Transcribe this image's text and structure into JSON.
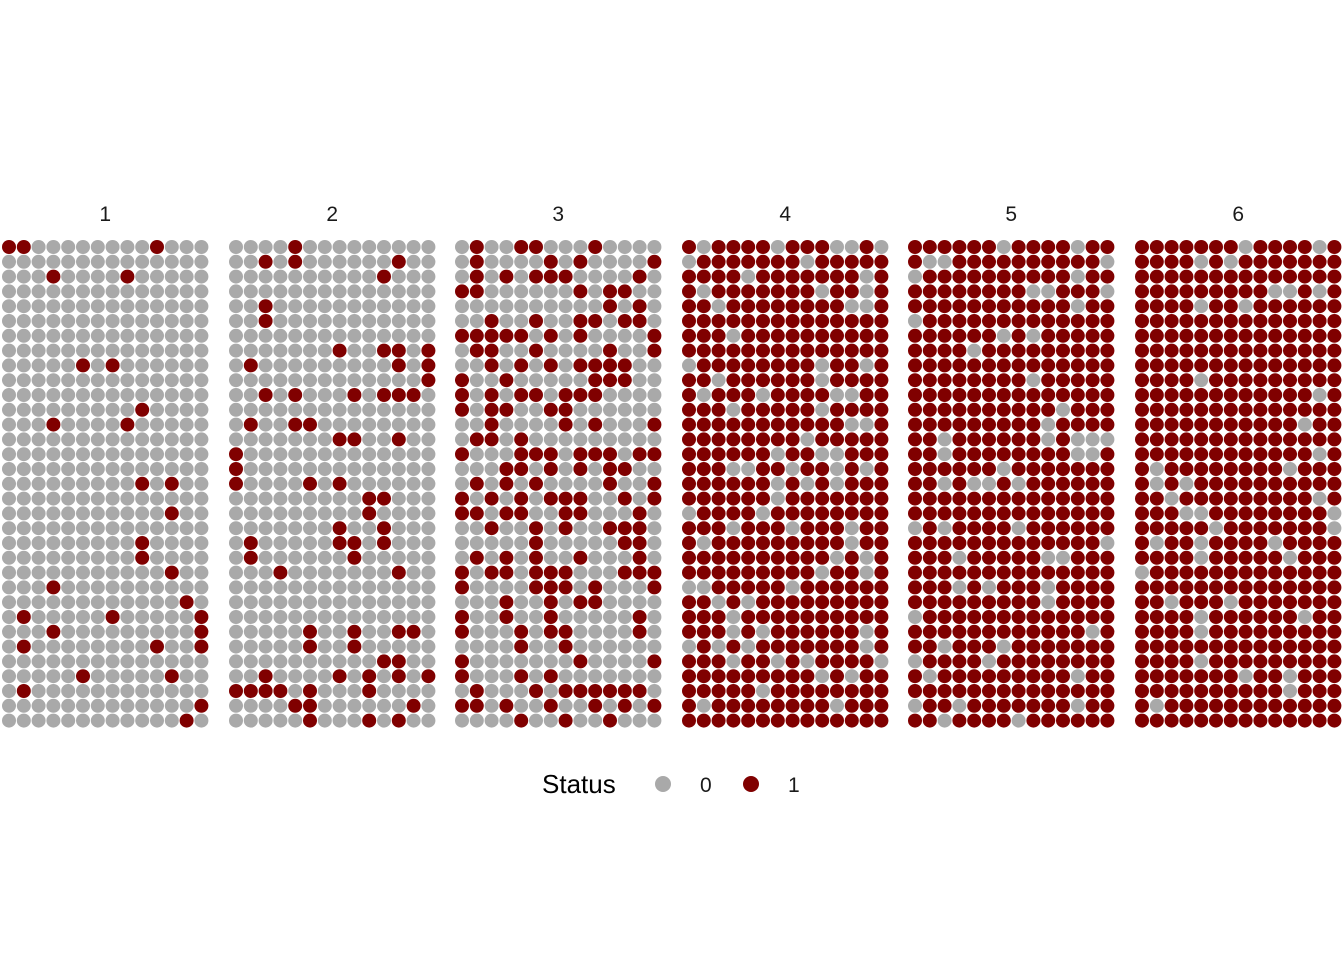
{
  "chart_data": {
    "type": "waffle",
    "facets": [
      "1",
      "2",
      "3",
      "4",
      "5",
      "6"
    ],
    "grid": {
      "columns": 14,
      "rows": 33
    },
    "facet_status_1_fraction": [
      0.07,
      0.15,
      0.38,
      0.84,
      0.88,
      0.93
    ],
    "legend": {
      "title": "Status",
      "placement": "bottom",
      "entries": [
        {
          "label": "0",
          "color": "#A9A9A9"
        },
        {
          "label": "1",
          "color": "#800000"
        }
      ]
    },
    "colors": {
      "status_0": "#A9A9A9",
      "status_1": "#800000"
    },
    "grid_lines": false,
    "axes_visible": false
  }
}
